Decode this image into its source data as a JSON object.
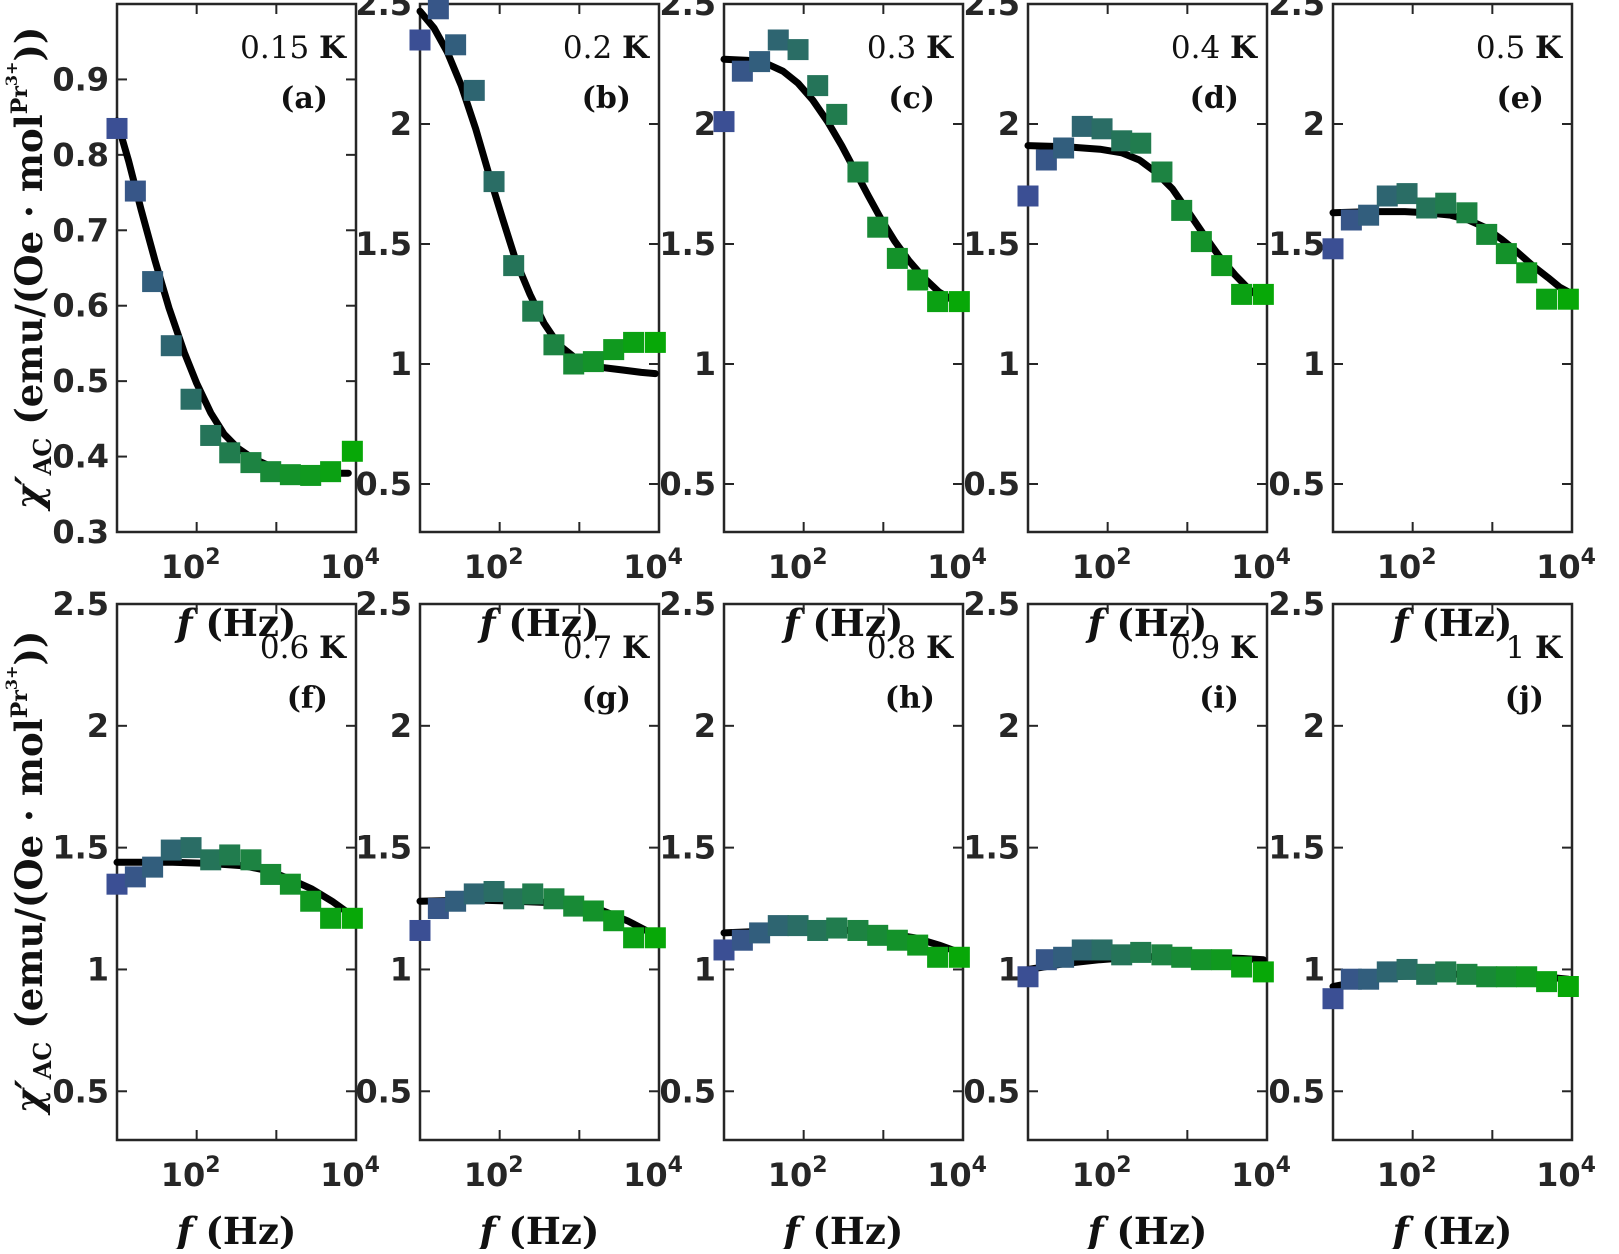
{
  "chart_data": {
    "type": "scatter",
    "layout": "2x5 grid",
    "xscale": "log",
    "xlabel": "f (Hz)",
    "xlabel_parts": {
      "var": "f",
      "unit": "(Hz)"
    },
    "ylabel": "χ′AC (emu/(Oe · mol^Pr3+))",
    "ylabel_parts": {
      "chi": "χ′",
      "sub": "AC",
      "body": "(emu/(Oe · mol",
      "sup": "Pr",
      "supsup": "3+",
      "close": "))"
    },
    "xticks": [
      {
        "base": "10",
        "exp": "2"
      },
      {
        "base": "10",
        "exp": "4"
      }
    ],
    "marker": "square",
    "marker_color_start": "#3b4f94",
    "marker_color_end": "#07a807",
    "fit_line_color": "#000000",
    "panels": [
      {
        "temp": "0.15",
        "unit": "K",
        "label": "(a)",
        "ylim": [
          0.3,
          1.0
        ],
        "yticks": [
          "0.3",
          "0.4",
          "0.5",
          "0.6",
          "0.7",
          "0.8",
          "0.9"
        ],
        "x": [
          10,
          17,
          28,
          48,
          85,
          150,
          260,
          480,
          850,
          1500,
          2700,
          4800,
          9000
        ],
        "y": [
          0.835,
          0.752,
          0.632,
          0.547,
          0.476,
          0.428,
          0.405,
          0.392,
          0.38,
          0.376,
          0.375,
          0.38,
          0.407
        ],
        "fit": [
          [
            10,
            0.845
          ],
          [
            14,
            0.792
          ],
          [
            20,
            0.728
          ],
          [
            30,
            0.66
          ],
          [
            45,
            0.597
          ],
          [
            70,
            0.538
          ],
          [
            100,
            0.497
          ],
          [
            150,
            0.458
          ],
          [
            220,
            0.43
          ],
          [
            330,
            0.411
          ],
          [
            500,
            0.398
          ],
          [
            800,
            0.388
          ],
          [
            1300,
            0.382
          ],
          [
            2200,
            0.379
          ],
          [
            4000,
            0.378
          ],
          [
            8000,
            0.378
          ]
        ]
      },
      {
        "temp": "0.2",
        "unit": "K",
        "label": "(b)",
        "ylim": [
          0.3,
          2.5
        ],
        "yticks": [
          "0.5",
          "1",
          "1.5",
          "2",
          "2.5"
        ],
        "x": [
          10,
          17,
          28,
          48,
          85,
          150,
          260,
          480,
          850,
          1500,
          2700,
          4800,
          9000
        ],
        "y": [
          2.35,
          2.48,
          2.33,
          2.14,
          1.76,
          1.41,
          1.22,
          1.08,
          1.0,
          1.01,
          1.06,
          1.09,
          1.09
        ],
        "fit": [
          [
            10,
            2.47
          ],
          [
            15,
            2.4
          ],
          [
            22,
            2.3
          ],
          [
            33,
            2.16
          ],
          [
            50,
            1.98
          ],
          [
            75,
            1.78
          ],
          [
            110,
            1.6
          ],
          [
            160,
            1.43
          ],
          [
            240,
            1.29
          ],
          [
            360,
            1.17
          ],
          [
            550,
            1.08
          ],
          [
            850,
            1.03
          ],
          [
            1300,
            1.0
          ],
          [
            2000,
            0.985
          ],
          [
            3500,
            0.975
          ],
          [
            6000,
            0.965
          ],
          [
            9000,
            0.96
          ]
        ]
      },
      {
        "temp": "0.3",
        "unit": "K",
        "label": "(c)",
        "ylim": [
          0.3,
          2.5
        ],
        "yticks": [
          "0.5",
          "1",
          "1.5",
          "2",
          "2.5"
        ],
        "x": [
          10,
          17,
          28,
          48,
          85,
          150,
          260,
          480,
          850,
          1500,
          2700,
          4800,
          9000
        ],
        "y": [
          2.01,
          2.22,
          2.26,
          2.35,
          2.31,
          2.16,
          2.04,
          1.8,
          1.57,
          1.44,
          1.35,
          1.26,
          1.26
        ],
        "fit": [
          [
            10,
            2.27
          ],
          [
            20,
            2.265
          ],
          [
            35,
            2.25
          ],
          [
            55,
            2.22
          ],
          [
            85,
            2.17
          ],
          [
            130,
            2.1
          ],
          [
            200,
            2.01
          ],
          [
            300,
            1.91
          ],
          [
            450,
            1.8
          ],
          [
            650,
            1.7
          ],
          [
            950,
            1.6
          ],
          [
            1400,
            1.51
          ],
          [
            2100,
            1.43
          ],
          [
            3200,
            1.36
          ],
          [
            5000,
            1.3
          ],
          [
            9000,
            1.25
          ]
        ]
      },
      {
        "temp": "0.4",
        "unit": "K",
        "label": "(d)",
        "ylim": [
          0.3,
          2.5
        ],
        "yticks": [
          "0.5",
          "1",
          "1.5",
          "2",
          "2.5"
        ],
        "x": [
          10,
          17,
          28,
          48,
          85,
          150,
          260,
          480,
          850,
          1500,
          2700,
          4800,
          9000
        ],
        "y": [
          1.7,
          1.85,
          1.9,
          1.99,
          1.98,
          1.93,
          1.92,
          1.8,
          1.64,
          1.51,
          1.41,
          1.29,
          1.29
        ],
        "fit": [
          [
            10,
            1.91
          ],
          [
            30,
            1.905
          ],
          [
            80,
            1.895
          ],
          [
            150,
            1.88
          ],
          [
            250,
            1.85
          ],
          [
            400,
            1.8
          ],
          [
            650,
            1.73
          ],
          [
            1000,
            1.64
          ],
          [
            1600,
            1.54
          ],
          [
            2500,
            1.45
          ],
          [
            4000,
            1.37
          ],
          [
            6000,
            1.31
          ],
          [
            9000,
            1.27
          ]
        ]
      },
      {
        "temp": "0.5",
        "unit": "K",
        "label": "(e)",
        "ylim": [
          0.3,
          2.5
        ],
        "yticks": [
          "0.5",
          "1",
          "1.5",
          "2",
          "2.5"
        ],
        "x": [
          10,
          17,
          28,
          48,
          85,
          150,
          260,
          480,
          850,
          1500,
          2700,
          4800,
          9000
        ],
        "y": [
          1.48,
          1.6,
          1.62,
          1.7,
          1.71,
          1.65,
          1.67,
          1.63,
          1.54,
          1.46,
          1.38,
          1.27,
          1.27
        ],
        "fit": [
          [
            10,
            1.63
          ],
          [
            30,
            1.635
          ],
          [
            80,
            1.635
          ],
          [
            150,
            1.63
          ],
          [
            300,
            1.62
          ],
          [
            500,
            1.6
          ],
          [
            800,
            1.57
          ],
          [
            1300,
            1.52
          ],
          [
            2000,
            1.47
          ],
          [
            3200,
            1.41
          ],
          [
            5000,
            1.36
          ],
          [
            7000,
            1.32
          ],
          [
            9000,
            1.3
          ]
        ]
      },
      {
        "temp": "0.6",
        "unit": "K",
        "label": "(f)",
        "ylim": [
          0.3,
          2.5
        ],
        "yticks": [
          "0.5",
          "1",
          "1.5",
          "2",
          "2.5"
        ],
        "x": [
          10,
          17,
          28,
          48,
          85,
          150,
          260,
          480,
          850,
          1500,
          2700,
          4800,
          9000
        ],
        "y": [
          1.35,
          1.38,
          1.42,
          1.49,
          1.5,
          1.45,
          1.47,
          1.45,
          1.39,
          1.35,
          1.28,
          1.21,
          1.21
        ],
        "fit": [
          [
            10,
            1.44
          ],
          [
            50,
            1.44
          ],
          [
            150,
            1.435
          ],
          [
            400,
            1.425
          ],
          [
            800,
            1.405
          ],
          [
            1500,
            1.37
          ],
          [
            2800,
            1.33
          ],
          [
            5000,
            1.28
          ],
          [
            9000,
            1.22
          ]
        ]
      },
      {
        "temp": "0.7",
        "unit": "K",
        "label": "(g)",
        "ylim": [
          0.3,
          2.5
        ],
        "yticks": [
          "0.5",
          "1",
          "1.5",
          "2",
          "2.5"
        ],
        "x": [
          10,
          17,
          28,
          48,
          85,
          150,
          260,
          480,
          850,
          1500,
          2700,
          4800,
          9000
        ],
        "y": [
          1.16,
          1.25,
          1.28,
          1.31,
          1.32,
          1.29,
          1.31,
          1.29,
          1.26,
          1.24,
          1.2,
          1.13,
          1.13
        ],
        "fit": [
          [
            10,
            1.28
          ],
          [
            50,
            1.285
          ],
          [
            150,
            1.28
          ],
          [
            400,
            1.275
          ],
          [
            900,
            1.26
          ],
          [
            2000,
            1.24
          ],
          [
            4000,
            1.2
          ],
          [
            9000,
            1.14
          ]
        ]
      },
      {
        "temp": "0.8",
        "unit": "K",
        "label": "(h)",
        "ylim": [
          0.3,
          2.5
        ],
        "yticks": [
          "0.5",
          "1",
          "1.5",
          "2",
          "2.5"
        ],
        "x": [
          10,
          17,
          28,
          48,
          85,
          150,
          260,
          480,
          850,
          1500,
          2700,
          4800,
          9000
        ],
        "y": [
          1.08,
          1.12,
          1.15,
          1.18,
          1.18,
          1.16,
          1.17,
          1.16,
          1.14,
          1.12,
          1.1,
          1.05,
          1.05
        ],
        "fit": [
          [
            10,
            1.15
          ],
          [
            50,
            1.16
          ],
          [
            150,
            1.165
          ],
          [
            400,
            1.16
          ],
          [
            1000,
            1.15
          ],
          [
            2500,
            1.13
          ],
          [
            5000,
            1.1
          ],
          [
            9000,
            1.07
          ]
        ]
      },
      {
        "temp": "0.9",
        "unit": "K",
        "label": "(i)",
        "ylim": [
          0.3,
          2.5
        ],
        "yticks": [
          "0.5",
          "1",
          "1.5",
          "2",
          "2.5"
        ],
        "x": [
          10,
          17,
          28,
          48,
          85,
          150,
          260,
          480,
          850,
          1500,
          2700,
          4800,
          9000
        ],
        "y": [
          0.97,
          1.04,
          1.05,
          1.08,
          1.08,
          1.06,
          1.07,
          1.06,
          1.05,
          1.04,
          1.04,
          1.01,
          0.99
        ],
        "fit": [
          [
            10,
            1.0
          ],
          [
            30,
            1.025
          ],
          [
            80,
            1.04
          ],
          [
            200,
            1.05
          ],
          [
            600,
            1.055
          ],
          [
            2000,
            1.05
          ],
          [
            5000,
            1.045
          ],
          [
            9000,
            1.04
          ]
        ]
      },
      {
        "temp": "1",
        "unit": "K",
        "label": "(j)",
        "ylim": [
          0.3,
          2.5
        ],
        "yticks": [
          "0.5",
          "1",
          "1.5",
          "2",
          "2.5"
        ],
        "x": [
          10,
          17,
          28,
          48,
          85,
          150,
          260,
          480,
          850,
          1500,
          2700,
          4800,
          9000
        ],
        "y": [
          0.88,
          0.96,
          0.96,
          0.99,
          1.0,
          0.98,
          0.99,
          0.98,
          0.97,
          0.97,
          0.97,
          0.95,
          0.93
        ],
        "fit": [
          [
            10,
            0.93
          ],
          [
            25,
            0.955
          ],
          [
            60,
            0.97
          ],
          [
            200,
            0.98
          ],
          [
            800,
            0.98
          ],
          [
            3000,
            0.975
          ],
          [
            9000,
            0.96
          ]
        ]
      }
    ]
  }
}
